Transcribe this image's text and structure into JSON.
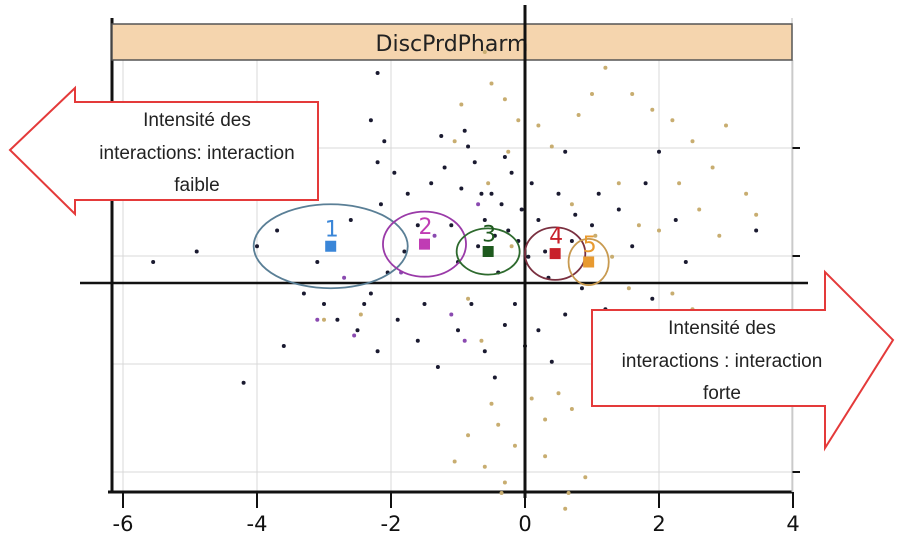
{
  "chart_data": {
    "type": "scatter",
    "panel_title": "DiscPrdPharm",
    "xlim": [
      -6.1,
      4.1
    ],
    "x_ticks": [
      -6,
      -4,
      -2,
      0,
      2,
      4
    ],
    "x_tick_labels": [
      "-6",
      "-4",
      "-2",
      "0",
      "2",
      "4"
    ],
    "clusters": [
      {
        "label": "1",
        "x": -2.9,
        "y": 0.35,
        "rx": 1.15,
        "ry": 0.4,
        "color": "#3a86d8",
        "ellipse_color": "#5a7f96"
      },
      {
        "label": "2",
        "x": -1.5,
        "y": 0.37,
        "rx": 0.62,
        "ry": 0.31,
        "color": "#c03cb4",
        "ellipse_color": "#9a3aa8"
      },
      {
        "label": "3",
        "x": -0.55,
        "y": 0.3,
        "rx": 0.47,
        "ry": 0.22,
        "color": "#1e5a1e",
        "ellipse_color": "#2e6a2e"
      },
      {
        "label": "4",
        "x": 0.45,
        "y": 0.28,
        "rx": 0.45,
        "ry": 0.25,
        "color": "#c8202a",
        "ellipse_color": "#7a3040"
      },
      {
        "label": "5",
        "x": 0.95,
        "y": 0.2,
        "rx": 0.3,
        "ry": 0.22,
        "color": "#e89a30",
        "ellipse_color": "#c89a50"
      }
    ],
    "points": {
      "dark": [
        [
          -3.7,
          0.5
        ],
        [
          -3.1,
          0.2
        ],
        [
          -3.3,
          -0.1
        ],
        [
          -2.8,
          -0.35
        ],
        [
          -2.6,
          0.6
        ],
        [
          -2.3,
          -0.1
        ],
        [
          -2.15,
          0.75
        ],
        [
          -2.1,
          1.35
        ],
        [
          -2.2,
          1.15
        ],
        [
          -1.95,
          1.05
        ],
        [
          -1.8,
          0.3
        ],
        [
          -1.6,
          0.55
        ],
        [
          -1.4,
          0.95
        ],
        [
          -1.2,
          1.1
        ],
        [
          -1.1,
          0.55
        ],
        [
          -1.0,
          0.2
        ],
        [
          -0.9,
          1.45
        ],
        [
          -0.85,
          1.3
        ],
        [
          -0.75,
          1.15
        ],
        [
          -0.65,
          0.85
        ],
        [
          -0.6,
          0.6
        ],
        [
          -0.5,
          0.85
        ],
        [
          -0.45,
          0.45
        ],
        [
          -0.35,
          0.75
        ],
        [
          -0.3,
          1.2
        ],
        [
          -0.25,
          0.5
        ],
        [
          -0.2,
          1.05
        ],
        [
          -0.1,
          0.4
        ],
        [
          -0.05,
          0.7
        ],
        [
          0.1,
          0.95
        ],
        [
          0.2,
          0.6
        ],
        [
          0.3,
          0.3
        ],
        [
          0.5,
          0.85
        ],
        [
          0.6,
          1.25
        ],
        [
          0.75,
          0.65
        ],
        [
          0.85,
          -0.05
        ],
        [
          1.0,
          0.55
        ],
        [
          1.2,
          -0.25
        ],
        [
          -2.5,
          -0.45
        ],
        [
          -2.2,
          -0.65
        ],
        [
          -1.9,
          -0.35
        ],
        [
          -1.6,
          -0.55
        ],
        [
          -1.3,
          -0.8
        ],
        [
          -1.0,
          -0.45
        ],
        [
          -0.8,
          -0.2
        ],
        [
          -0.6,
          -0.65
        ],
        [
          -0.45,
          -0.9
        ],
        [
          -0.3,
          -0.4
        ],
        [
          -0.15,
          -0.2
        ],
        [
          0.0,
          -0.6
        ],
        [
          0.2,
          -0.45
        ],
        [
          0.4,
          -0.75
        ],
        [
          0.6,
          -0.3
        ],
        [
          -4.2,
          -0.95
        ],
        [
          -3.6,
          -0.6
        ],
        [
          -3.0,
          -0.2
        ],
        [
          -2.05,
          0.1
        ],
        [
          -1.75,
          0.85
        ],
        [
          -1.25,
          1.4
        ],
        [
          -0.95,
          0.9
        ],
        [
          -0.7,
          0.35
        ],
        [
          -0.4,
          0.1
        ],
        [
          0.05,
          0.25
        ],
        [
          0.35,
          0.05
        ],
        [
          1.4,
          0.7
        ],
        [
          1.6,
          0.35
        ],
        [
          1.8,
          0.95
        ],
        [
          2.0,
          1.25
        ],
        [
          2.25,
          0.6
        ],
        [
          2.4,
          0.2
        ],
        [
          1.9,
          -0.15
        ],
        [
          -2.3,
          1.55
        ],
        [
          -2.2,
          2.0
        ],
        [
          -4.9,
          0.3
        ],
        [
          -5.55,
          0.2
        ],
        [
          -4.0,
          0.35
        ],
        [
          -2.4,
          -0.2
        ],
        [
          -1.5,
          -0.2
        ],
        [
          0.7,
          0.4
        ],
        [
          1.1,
          0.85
        ],
        [
          3.45,
          0.5
        ],
        [
          2.9,
          -0.35
        ]
      ],
      "light": [
        [
          -0.6,
          2.2
        ],
        [
          -0.5,
          1.9
        ],
        [
          -0.3,
          1.75
        ],
        [
          -0.1,
          1.55
        ],
        [
          0.2,
          1.5
        ],
        [
          0.4,
          1.3
        ],
        [
          0.8,
          1.6
        ],
        [
          1.0,
          1.8
        ],
        [
          1.2,
          2.05
        ],
        [
          1.6,
          1.8
        ],
        [
          1.9,
          1.65
        ],
        [
          2.2,
          1.55
        ],
        [
          2.5,
          1.35
        ],
        [
          2.8,
          1.1
        ],
        [
          3.0,
          1.5
        ],
        [
          3.3,
          0.85
        ],
        [
          3.45,
          0.65
        ],
        [
          2.9,
          0.45
        ],
        [
          2.6,
          0.7
        ],
        [
          2.3,
          0.95
        ],
        [
          2.0,
          0.5
        ],
        [
          1.7,
          0.55
        ],
        [
          1.4,
          0.95
        ],
        [
          1.3,
          0.25
        ],
        [
          1.05,
          0.45
        ],
        [
          0.7,
          0.75
        ],
        [
          -0.55,
          0.95
        ],
        [
          -0.25,
          1.25
        ],
        [
          -0.85,
          -0.15
        ],
        [
          -0.65,
          -0.55
        ],
        [
          -0.5,
          -1.15
        ],
        [
          -0.4,
          -1.35
        ],
        [
          -0.85,
          -1.45
        ],
        [
          -1.05,
          -1.7
        ],
        [
          -0.6,
          -1.75
        ],
        [
          -0.35,
          -2.0
        ],
        [
          -0.15,
          -1.55
        ],
        [
          0.1,
          -1.1
        ],
        [
          0.3,
          -1.3
        ],
        [
          0.5,
          -1.05
        ],
        [
          0.7,
          -1.2
        ],
        [
          0.9,
          -1.85
        ],
        [
          0.65,
          -2.0
        ],
        [
          0.3,
          -1.65
        ],
        [
          -0.95,
          1.7
        ],
        [
          -1.05,
          1.35
        ],
        [
          -0.2,
          0.35
        ],
        [
          1.55,
          -0.05
        ],
        [
          -3.0,
          -0.35
        ],
        [
          -2.45,
          -0.3
        ],
        [
          2.2,
          -0.1
        ],
        [
          2.5,
          -0.25
        ],
        [
          0.6,
          -2.15
        ],
        [
          -0.3,
          -1.9
        ]
      ],
      "violet": [
        [
          -3.1,
          -0.35
        ],
        [
          -2.55,
          -0.5
        ],
        [
          -1.85,
          0.1
        ],
        [
          -1.35,
          0.45
        ],
        [
          -0.9,
          -0.55
        ],
        [
          -0.7,
          0.75
        ],
        [
          -2.7,
          0.05
        ],
        [
          -1.1,
          -0.3
        ]
      ]
    }
  },
  "annotations": {
    "left_arrow_lines": [
      "Intensité des",
      "interactions: interaction",
      "faible"
    ],
    "right_arrow_lines": [
      "Intensité des",
      "interactions : interaction",
      "forte"
    ]
  },
  "colors": {
    "strip_fill": "#f5d5ae",
    "arrow_outline": "#e43a3a",
    "grid": "#d8d8d8",
    "dark_points": "#1a1a30",
    "light_points": "#c8ad70",
    "violet_points": "#8a4ab0"
  }
}
